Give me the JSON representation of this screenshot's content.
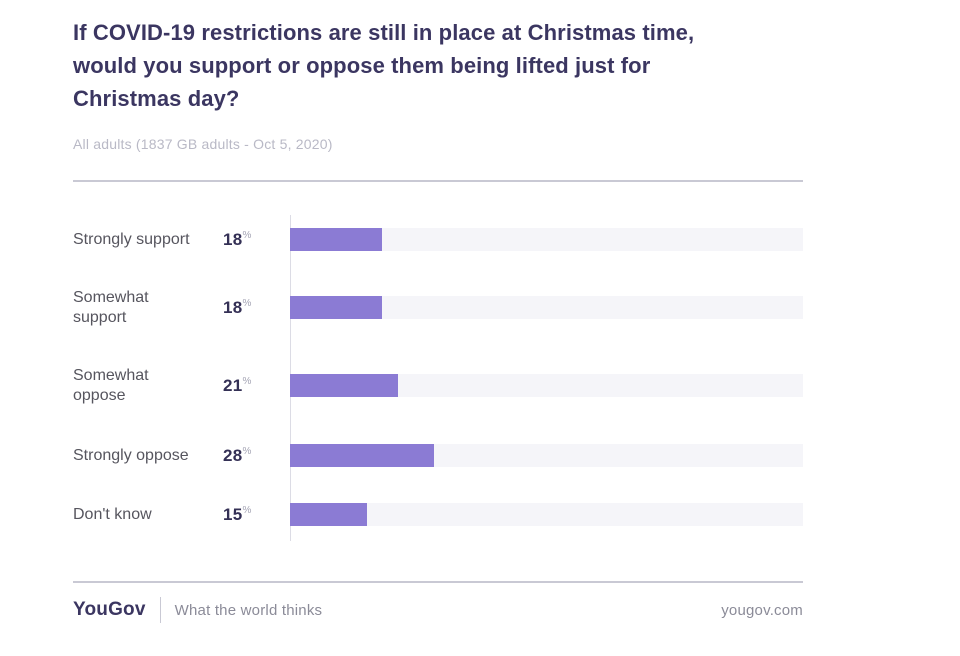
{
  "chart_data": {
    "type": "bar",
    "orientation": "horizontal",
    "title": "If COVID-19 restrictions are still in place at Christmas time,\nwould you support or oppose them being lifted just for\nChristmas day?",
    "subtitle": "All adults (1837 GB adults - Oct 5, 2020)",
    "categories": [
      "Strongly support",
      "Somewhat\nsupport",
      "Somewhat\noppose",
      "Strongly oppose",
      "Don't know"
    ],
    "values": [
      18,
      18,
      21,
      28,
      15
    ],
    "unit": "%",
    "xlim": [
      0,
      100
    ],
    "grid": false,
    "legend": false,
    "value_labels_position": "left-of-bar",
    "bar_color": "#8b7bd4",
    "track_color": "#f5f5f9",
    "axis_line_color": "#dcdce5"
  },
  "footer": {
    "logo_text": "YouGov",
    "tagline": "What the world thinks",
    "website": "yougov.com"
  },
  "colors": {
    "title": "#3b3661",
    "subtitle": "#b9b9c6",
    "category_label": "#56555e",
    "value_label": "#343055",
    "unit_label": "#a4a4b4",
    "divider": "#c9c9d4",
    "footer_text": "#8b8b98"
  }
}
